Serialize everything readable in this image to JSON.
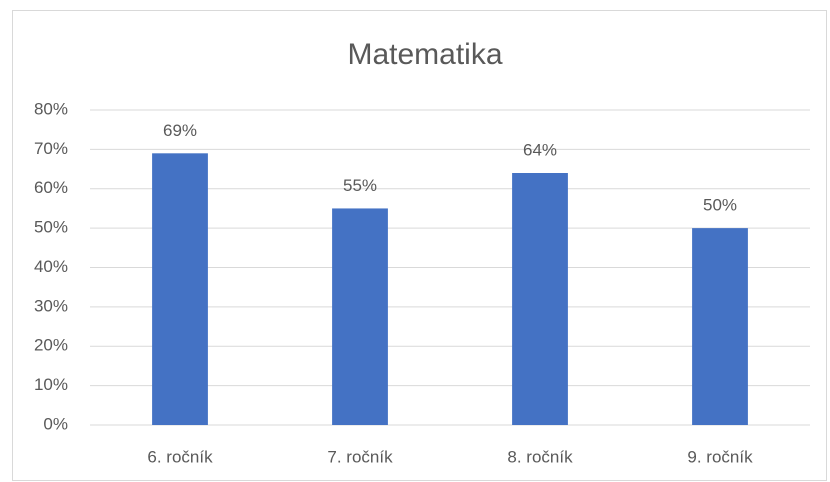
{
  "chart_data": {
    "type": "bar",
    "title": "Matematika",
    "categories": [
      "6. ročník",
      "7. ročník",
      "8. ročník",
      "9. ročník"
    ],
    "values": [
      69,
      55,
      64,
      50
    ],
    "value_labels": [
      "69%",
      "55%",
      "64%",
      "50%"
    ],
    "color": "#4472c4",
    "ylim": [
      0,
      80
    ],
    "yticks": [
      {
        "value": 0,
        "label": "0%"
      },
      {
        "value": 10,
        "label": "10%"
      },
      {
        "value": 20,
        "label": "20%"
      },
      {
        "value": 30,
        "label": "30%"
      },
      {
        "value": 40,
        "label": "40%"
      },
      {
        "value": 50,
        "label": "50%"
      },
      {
        "value": 60,
        "label": "60%"
      },
      {
        "value": 70,
        "label": "70%"
      },
      {
        "value": 80,
        "label": "80%"
      }
    ],
    "grid": true
  }
}
